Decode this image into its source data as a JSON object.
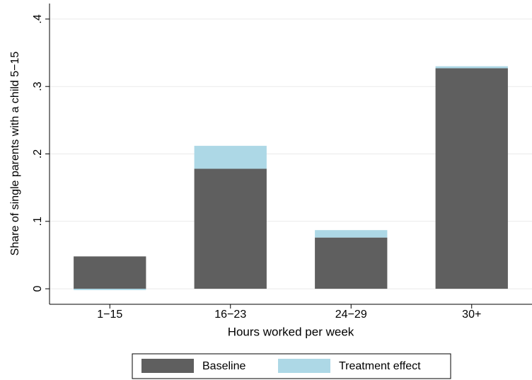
{
  "chart_data": {
    "type": "stacked_bar",
    "categories": [
      "1−15",
      "16−23",
      "24−29",
      "30+"
    ],
    "series": [
      {
        "name": "Baseline",
        "color": "#5f5f5f",
        "values": [
          0.048,
          0.178,
          0.076,
          0.327
        ]
      },
      {
        "name": "Treatment effect",
        "color": "#add8e6",
        "values": [
          -0.002,
          0.034,
          0.011,
          0.003
        ]
      }
    ],
    "x_label": "Hours worked per week",
    "y_label": "Share of single parents with a child 5−15",
    "ylim": [
      -0.023,
      0.423
    ],
    "yticks": [
      0,
      {
        "value": 0.1,
        "label": ".1"
      },
      {
        "value": 0.2,
        "label": ".2"
      },
      {
        "value": 0.3,
        "label": ".3"
      },
      {
        "value": 0.4,
        "label": ".4"
      }
    ],
    "grid": true,
    "legend": "bottom"
  }
}
